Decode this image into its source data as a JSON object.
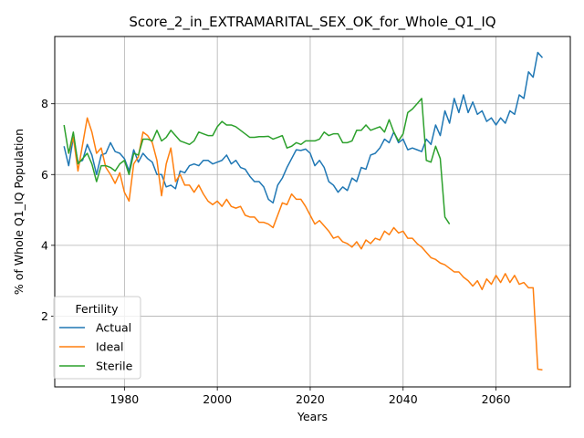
{
  "chart_data": {
    "type": "line",
    "title": "Score_2_in_EXTRAMARITAL_SEX_OK_for_Whole_Q1_IQ",
    "xlabel": "Years",
    "ylabel": "% of Whole Q1_IQ Population",
    "xlim": [
      1965,
      2076
    ],
    "ylim": [
      0,
      9.9
    ],
    "xticks": [
      1980,
      2000,
      2020,
      2040,
      2060
    ],
    "yticks": [
      2,
      4,
      6,
      8
    ],
    "grid": true,
    "legend": {
      "title": "Fertility",
      "position": "lower-left"
    },
    "series": [
      {
        "name": "Actual",
        "color": "#1f77b4",
        "x": [
          1967,
          1968,
          1969,
          1970,
          1971,
          1972,
          1973,
          1974,
          1975,
          1976,
          1977,
          1978,
          1979,
          1980,
          1981,
          1982,
          1983,
          1984,
          1985,
          1986,
          1987,
          1988,
          1989,
          1990,
          1991,
          1992,
          1993,
          1994,
          1995,
          1996,
          1997,
          1998,
          1999,
          2000,
          2001,
          2002,
          2003,
          2004,
          2005,
          2006,
          2007,
          2008,
          2009,
          2010,
          2011,
          2012,
          2013,
          2014,
          2015,
          2016,
          2017,
          2018,
          2019,
          2020,
          2021,
          2022,
          2023,
          2024,
          2025,
          2026,
          2027,
          2028,
          2029,
          2030,
          2031,
          2032,
          2033,
          2034,
          2035,
          2036,
          2037,
          2038,
          2039,
          2040,
          2041,
          2042,
          2043,
          2044,
          2045,
          2046,
          2047,
          2048,
          2049,
          2050,
          2051,
          2052,
          2053,
          2054,
          2055,
          2056,
          2057,
          2058,
          2059,
          2060,
          2061,
          2062,
          2063,
          2064,
          2065,
          2066,
          2067,
          2068,
          2069,
          2070
        ],
        "y": [
          6.8,
          6.25,
          7.05,
          6.35,
          6.4,
          6.85,
          6.55,
          6.0,
          6.55,
          6.6,
          6.9,
          6.65,
          6.6,
          6.45,
          6.1,
          6.7,
          6.35,
          6.6,
          6.45,
          6.35,
          6.0,
          6.0,
          5.65,
          5.7,
          5.6,
          6.1,
          6.05,
          6.25,
          6.3,
          6.25,
          6.4,
          6.4,
          6.3,
          6.35,
          6.4,
          6.55,
          6.3,
          6.4,
          6.2,
          6.15,
          5.95,
          5.8,
          5.8,
          5.65,
          5.3,
          5.2,
          5.7,
          5.9,
          6.2,
          6.45,
          6.7,
          6.68,
          6.72,
          6.6,
          6.25,
          6.4,
          6.2,
          5.8,
          5.7,
          5.5,
          5.65,
          5.55,
          5.9,
          5.8,
          6.2,
          6.15,
          6.55,
          6.6,
          6.75,
          7.0,
          6.9,
          7.2,
          6.9,
          7.0,
          6.7,
          6.75,
          6.7,
          6.65,
          7.0,
          6.85,
          7.4,
          7.1,
          7.8,
          7.45,
          8.15,
          7.75,
          8.25,
          7.75,
          8.05,
          7.7,
          7.8,
          7.5,
          7.6,
          7.4,
          7.6,
          7.45,
          7.8,
          7.7,
          8.25,
          8.15,
          8.9,
          8.75,
          9.45,
          9.3
        ]
      },
      {
        "name": "Ideal",
        "color": "#ff7f0e",
        "x": [
          1968,
          1969,
          1970,
          1971,
          1972,
          1973,
          1974,
          1975,
          1976,
          1977,
          1978,
          1979,
          1980,
          1981,
          1982,
          1983,
          1984,
          1985,
          1986,
          1987,
          1988,
          1989,
          1990,
          1991,
          1992,
          1993,
          1994,
          1995,
          1996,
          1997,
          1998,
          1999,
          2000,
          2001,
          2002,
          2003,
          2004,
          2005,
          2006,
          2007,
          2008,
          2009,
          2010,
          2011,
          2012,
          2013,
          2014,
          2015,
          2016,
          2017,
          2018,
          2019,
          2020,
          2021,
          2022,
          2023,
          2024,
          2025,
          2026,
          2027,
          2028,
          2029,
          2030,
          2031,
          2032,
          2033,
          2034,
          2035,
          2036,
          2037,
          2038,
          2039,
          2040,
          2041,
          2042,
          2043,
          2044,
          2045,
          2046,
          2047,
          2048,
          2049,
          2050,
          2051,
          2052,
          2053,
          2054,
          2055,
          2056,
          2057,
          2058,
          2059,
          2060,
          2061,
          2062,
          2063,
          2064,
          2065,
          2066,
          2067,
          2068,
          2069,
          2070
        ],
        "y": [
          6.6,
          7.05,
          6.1,
          6.85,
          7.6,
          7.2,
          6.6,
          6.75,
          6.2,
          6.0,
          5.75,
          6.05,
          5.5,
          5.25,
          6.3,
          6.5,
          7.2,
          7.1,
          6.9,
          6.4,
          5.4,
          6.3,
          6.75,
          5.8,
          6.0,
          5.7,
          5.7,
          5.5,
          5.7,
          5.45,
          5.25,
          5.15,
          5.25,
          5.1,
          5.3,
          5.1,
          5.05,
          5.1,
          4.85,
          4.8,
          4.8,
          4.65,
          4.65,
          4.6,
          4.5,
          4.85,
          5.2,
          5.15,
          5.45,
          5.3,
          5.3,
          5.1,
          4.85,
          4.6,
          4.7,
          4.55,
          4.4,
          4.2,
          4.25,
          4.1,
          4.05,
          3.95,
          4.1,
          3.9,
          4.15,
          4.05,
          4.2,
          4.15,
          4.4,
          4.3,
          4.5,
          4.35,
          4.4,
          4.2,
          4.2,
          4.05,
          3.95,
          3.8,
          3.65,
          3.6,
          3.5,
          3.45,
          3.35,
          3.25,
          3.25,
          3.1,
          3.0,
          2.85,
          3.0,
          2.75,
          3.05,
          2.9,
          3.15,
          2.95,
          3.2,
          2.95,
          3.15,
          2.9,
          2.95,
          2.8,
          2.8,
          0.5,
          0.48
        ]
      },
      {
        "name": "Sterile",
        "color": "#2ca02c",
        "x": [
          1967,
          1968,
          1969,
          1970,
          1971,
          1972,
          1973,
          1974,
          1975,
          1976,
          1977,
          1978,
          1979,
          1980,
          1981,
          1982,
          1983,
          1984,
          1985,
          1986,
          1987,
          1988,
          1989,
          1990,
          1991,
          1992,
          1993,
          1994,
          1995,
          1996,
          1997,
          1998,
          1999,
          2000,
          2001,
          2002,
          2003,
          2004,
          2005,
          2006,
          2007,
          2008,
          2009,
          2010,
          2011,
          2012,
          2013,
          2014,
          2015,
          2016,
          2017,
          2018,
          2019,
          2020,
          2021,
          2022,
          2023,
          2024,
          2025,
          2026,
          2027,
          2028,
          2029,
          2030,
          2031,
          2032,
          2033,
          2034,
          2035,
          2036,
          2037,
          2038,
          2039,
          2040,
          2041,
          2042,
          2043,
          2044,
          2045,
          2046,
          2047,
          2048,
          2049,
          2050
        ],
        "y": [
          7.4,
          6.6,
          7.2,
          6.3,
          6.45,
          6.6,
          6.3,
          5.8,
          6.25,
          6.25,
          6.2,
          6.1,
          6.3,
          6.4,
          6.0,
          6.6,
          6.55,
          7.0,
          7.0,
          6.95,
          7.25,
          6.95,
          7.05,
          7.25,
          7.1,
          6.95,
          6.9,
          6.85,
          6.95,
          7.2,
          7.15,
          7.1,
          7.1,
          7.35,
          7.5,
          7.4,
          7.4,
          7.35,
          7.25,
          7.15,
          7.05,
          7.05,
          7.07,
          7.07,
          7.08,
          7.0,
          7.05,
          7.1,
          6.75,
          6.8,
          6.9,
          6.85,
          6.95,
          6.95,
          6.95,
          7.0,
          7.2,
          7.1,
          7.15,
          7.15,
          6.9,
          6.9,
          6.95,
          7.25,
          7.25,
          7.4,
          7.25,
          7.3,
          7.35,
          7.2,
          7.55,
          7.2,
          6.95,
          7.15,
          7.75,
          7.85,
          8.0,
          8.15,
          6.4,
          6.35,
          6.8,
          6.45,
          4.8,
          4.6
        ]
      }
    ]
  }
}
